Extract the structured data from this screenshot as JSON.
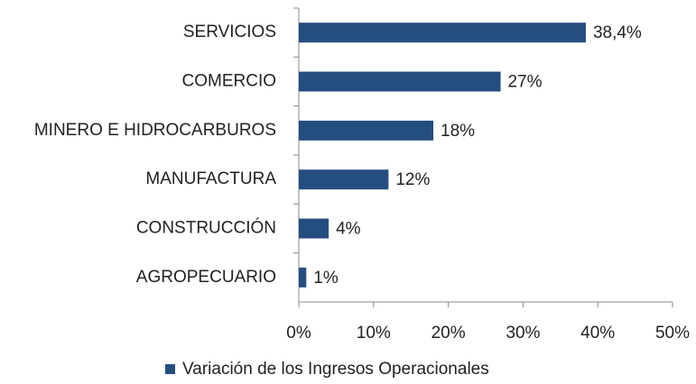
{
  "chart_data": {
    "type": "bar",
    "orientation": "horizontal",
    "categories": [
      "SERVICIOS",
      "COMERCIO",
      "MINERO E HIDROCARBUROS",
      "MANUFACTURA",
      "CONSTRUCCIÓN",
      "AGROPECUARIO"
    ],
    "series": [
      {
        "name": "Variación de los Ingresos Operacionales",
        "color": "#254e80",
        "values": [
          38.4,
          27,
          18,
          12,
          4,
          1
        ],
        "value_labels": [
          "38,4%",
          "27%",
          "18%",
          "12%",
          "4%",
          "1%"
        ]
      }
    ],
    "xlim": [
      0,
      50
    ],
    "xticks": [
      {
        "value": 0,
        "label": "0%"
      },
      {
        "value": 10,
        "label": "10%"
      },
      {
        "value": 20,
        "label": "20%"
      },
      {
        "value": 30,
        "label": "30%"
      },
      {
        "value": 40,
        "label": "40%"
      },
      {
        "value": 50,
        "label": "50%"
      }
    ],
    "grid": false,
    "legend": "bottom"
  }
}
